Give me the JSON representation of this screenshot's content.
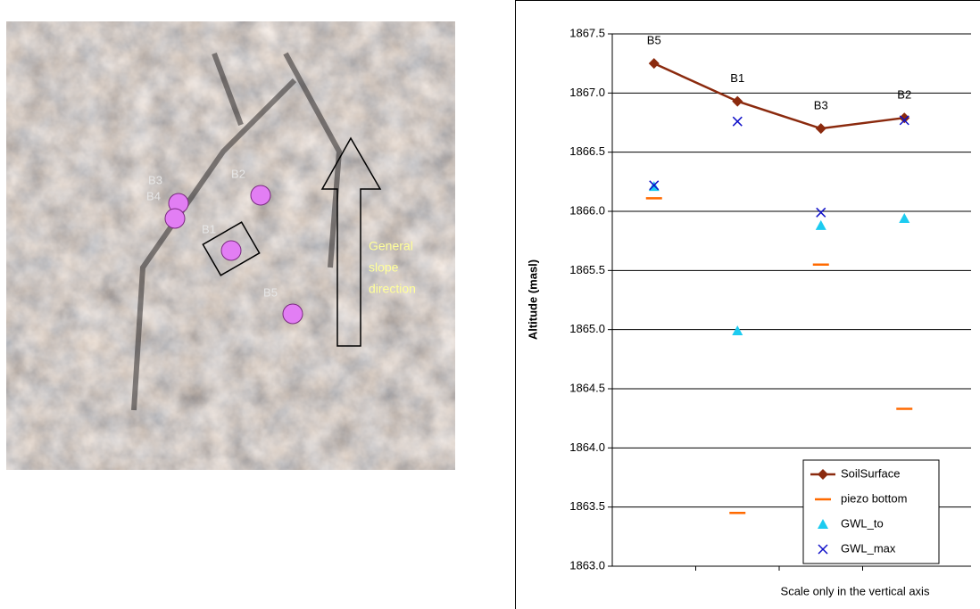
{
  "photo": {
    "labels": [
      "B3",
      "B4",
      "B2",
      "B1",
      "B5"
    ],
    "annotation": [
      "General",
      "slope",
      "direction"
    ]
  },
  "chart_data": {
    "type": "line",
    "categories": [
      "B5",
      "B1",
      "B3",
      "B2"
    ],
    "y_label": "Altitude (masl)",
    "note": "Scale only in the vertical axis",
    "ylim": [
      1863,
      1867.5
    ],
    "yticks": [
      {
        "value": 1863,
        "label": "1863.0"
      },
      {
        "value": 1863.5,
        "label": "1863.5"
      },
      {
        "value": 1864,
        "label": "1864.0"
      },
      {
        "value": 1864.5,
        "label": "1864.5"
      },
      {
        "value": 1865,
        "label": "1865.0"
      },
      {
        "value": 1865.5,
        "label": "1865.5"
      },
      {
        "value": 1866,
        "label": "1866.0"
      },
      {
        "value": 1866.5,
        "label": "1866.5"
      },
      {
        "value": 1867,
        "label": "1867.0"
      },
      {
        "value": 1867.5,
        "label": "1867.5"
      }
    ],
    "grid": true,
    "legend": "lower right",
    "series": [
      {
        "name": "SoilSurface",
        "color": "#8b2a0e",
        "marker": "diamond",
        "line": true,
        "values": [
          1867.25,
          1866.93,
          1866.7,
          1866.79
        ]
      },
      {
        "name": "piezo bottom",
        "color": "#ff6a00",
        "marker": "dash",
        "line": false,
        "values": [
          1866.11,
          1863.45,
          1865.55,
          1864.33
        ]
      },
      {
        "name": "GWL_to",
        "color": "#1ccbf0",
        "marker": "triangle",
        "line": false,
        "values": [
          1866.21,
          1864.99,
          1865.88,
          1865.94
        ]
      },
      {
        "name": "GWL_max",
        "color": "#1010c8",
        "marker": "x",
        "line": false,
        "values": [
          1866.22,
          1866.76,
          1865.99,
          1866.77
        ]
      }
    ]
  }
}
